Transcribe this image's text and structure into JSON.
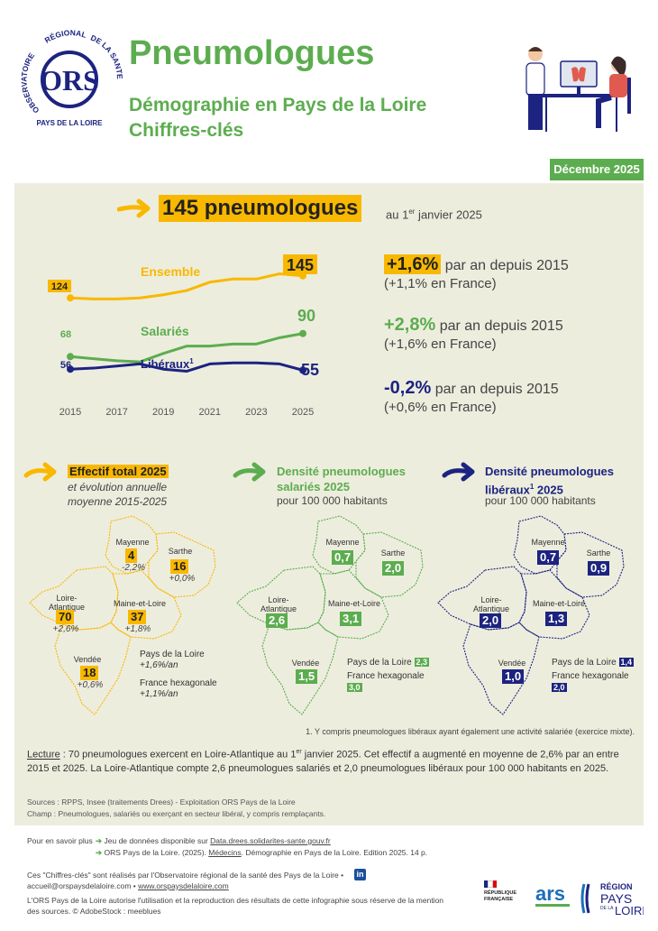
{
  "logo": {
    "arc_text_left": "OBSERVATOIRE",
    "arc_text_top": "RÉGIONAL",
    "arc_text_right": "DE LA SANTÉ",
    "bottom_text": "PAYS DE LA LOIRE",
    "mark": "ORS"
  },
  "header": {
    "title": "Pneumologues",
    "subtitle_line1": "Démographie en Pays de la Loire",
    "subtitle_line2": "Chiffres-clés",
    "date": "Décembre 2025"
  },
  "headline": {
    "count": "145 pneumologues",
    "suffix_pre": "au 1",
    "suffix_sup": "er",
    "suffix_post": " janvier 2025"
  },
  "trend": {
    "label_ensemble": "Ensemble",
    "label_salaries": "Salariés",
    "label_liberaux": "Libéraux",
    "liberaux_sup": "1",
    "start_ensemble": "124",
    "start_salaries": "68",
    "start_liberaux": "56",
    "end_ensemble": "145",
    "end_salaries": "90",
    "end_liberaux": "55",
    "x_ticks": [
      "2015",
      "2017",
      "2019",
      "2021",
      "2023",
      "2025"
    ]
  },
  "chart_data": {
    "type": "line",
    "x": [
      2015,
      2016,
      2017,
      2018,
      2019,
      2020,
      2021,
      2022,
      2023,
      2024,
      2025
    ],
    "xlim": [
      2015,
      2025
    ],
    "ylim": [
      45,
      150
    ],
    "series": [
      {
        "name": "Ensemble",
        "color": "#f9b800",
        "values": [
          124,
          123,
          123,
          124,
          127,
          131,
          139,
          142,
          142,
          147,
          145
        ]
      },
      {
        "name": "Salariés",
        "color": "#5cad4f",
        "values": [
          68,
          66,
          64,
          63,
          71,
          78,
          78,
          80,
          80,
          86,
          90
        ]
      },
      {
        "name": "Libéraux",
        "color": "#1c2380",
        "values": [
          56,
          57,
          59,
          61,
          56,
          54,
          61,
          62,
          62,
          61,
          55
        ]
      }
    ]
  },
  "stats": [
    {
      "value": "+1,6%",
      "text": " par an depuis 2015",
      "sub": "(+1,1% en France)"
    },
    {
      "value": "+2,8%",
      "text": " par an depuis 2015",
      "sub": "(+1,6% en France)"
    },
    {
      "value": "-0,2%",
      "text": " par an depuis 2015",
      "sub": "(+0,6% en France)"
    }
  ],
  "section1": {
    "title": "Effectif total 2025",
    "sub_line1": "et évolution annuelle",
    "sub_line2": "moyenne 2015-2025"
  },
  "section2": {
    "title_line1": "Densité pneumologues",
    "title_line2": "salariés 2025",
    "sub": "pour 100 000 habitants"
  },
  "section3": {
    "title_line1": "Densité pneumologues",
    "title_line2_pre": "libéraux",
    "title_sup": "1",
    "title_line2_post": " 2025",
    "sub": "pour 100 000 habitants"
  },
  "depts": {
    "mayenne": "Mayenne",
    "sarthe": "Sarthe",
    "loire_atl_1": "Loire-",
    "loire_atl_2": "Atlantique",
    "maine": "Maine-et-Loire",
    "vendee": "Vendée"
  },
  "map1": {
    "mayenne": {
      "value": "4",
      "evo": "-2,2%"
    },
    "sarthe": {
      "value": "16",
      "evo": "+0,0%"
    },
    "loire_atl": {
      "value": "70",
      "evo": "+2,6%"
    },
    "maine": {
      "value": "37",
      "evo": "+1,8%"
    },
    "vendee": {
      "value": "18",
      "evo": "+0,6%"
    },
    "pdl_label": "Pays de la Loire",
    "pdl_evo": "+1,6%/an",
    "fr_label": "France hexagonale",
    "fr_evo": "+1,1%/an"
  },
  "map2": {
    "mayenne": "0,7",
    "sarthe": "2,0",
    "loire_atl": "2,6",
    "maine": "3,1",
    "vendee": "1,5",
    "pdl_label": "Pays de la Loire",
    "pdl_value": "2,3",
    "fr_label": "France hexagonale",
    "fr_value": "3,0"
  },
  "map3": {
    "mayenne": "0,7",
    "sarthe": "0,9",
    "loire_atl": "2,0",
    "maine": "1,3",
    "vendee": "1,0",
    "pdl_label": "Pays de la Loire",
    "pdl_value": "1,4",
    "fr_label": "France hexagonale",
    "fr_value": "2,0"
  },
  "footnote": "1. Y compris pneumologues libéraux ayant également une activité salariée (exercice mixte).",
  "lecture": {
    "label": "Lecture",
    "text_pre": " : 70 pneumologues exercent en Loire-Atlantique au 1",
    "sup": "er",
    "text_post": " janvier 2025. Cet effectif a augmenté en moyenne de 2,6% par an entre 2015 et 2025. La Loire-Atlantique compte 2,6 pneumologues salariés et 2,0 pneumologues libéraux pour 100 000 habitants en 2025."
  },
  "sources": {
    "line1": "Sources : RPPS, Insee (traitements Drees) - Exploitation ORS Pays de la Loire",
    "line2": "Champ : Pneumologues, salariés ou exerçant en secteur libéral, y compris remplaçants."
  },
  "footer": {
    "more_label": "Pour en savoir plus",
    "link1_pre": "Jeu de données disponible sur ",
    "link1_url": "Data.drees.solidarites-sante.gouv.fr",
    "link2_pre": "ORS Pays de la Loire. (2025). ",
    "link2_title": "Médecins",
    "link2_post": ". Démographie en Pays de la Loire. Edition 2025. 14 p.",
    "credit_line1": "Ces \"Chiffres-clés\" sont réalisés par l'Observatoire régional de la santé des Pays de la Loire •",
    "credit_email": "accueil@orspaysdelaloire.com",
    "credit_sep": " • ",
    "credit_site": "www.orspaysdelaloire.com",
    "credit_line3": "L'ORS Pays de la Loire autorise l'utilisation et la reproduction des résultats de cette infographie sous réserve de la mention des sources. © AdobeStock : meeblues",
    "linkedin": "in",
    "rf_line1": "RÉPUBLIQUE",
    "rf_line2": "FRANÇAISE",
    "ars": "ars",
    "region_line1": "RÉGION",
    "region_line2": "PAYS",
    "region_line3": "DE LA",
    "region_line4": "LOIRE"
  }
}
